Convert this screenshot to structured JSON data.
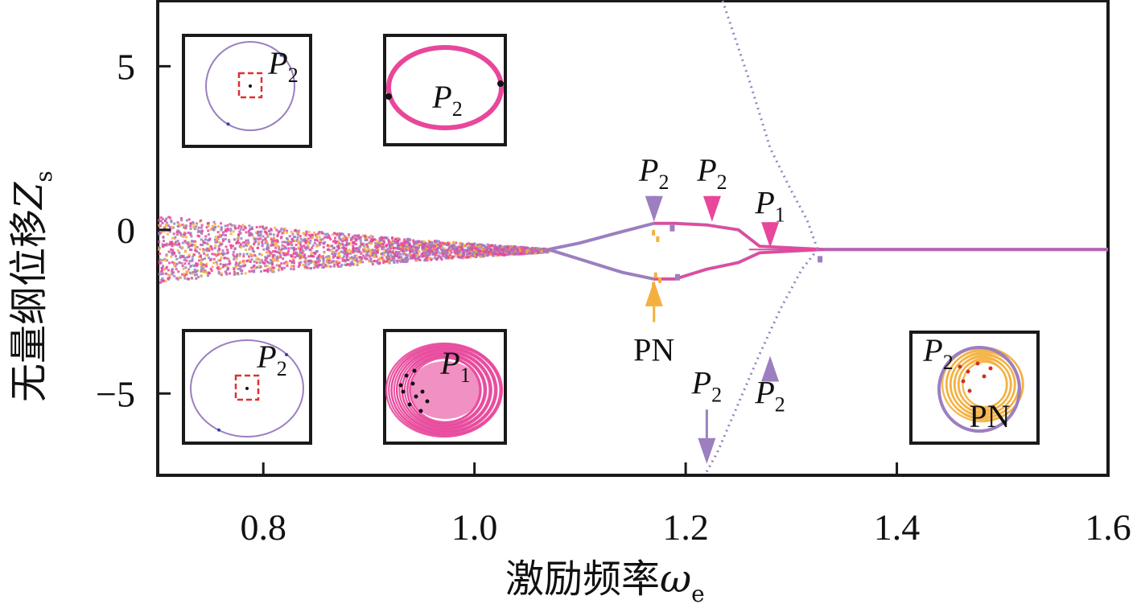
{
  "chart_data": {
    "type": "scatter",
    "xlabel": "激励频率",
    "xlabel_symbol": "ω",
    "xlabel_subscript": "e",
    "ylabel": "无量纲位移",
    "ylabel_symbol": "Z",
    "ylabel_subscript": "s",
    "xlim": [
      0.7,
      1.6
    ],
    "ylim": [
      -7.5,
      7
    ],
    "x_ticks": [
      0.8,
      1.0,
      1.2,
      1.4,
      1.6
    ],
    "x_tick_labels": [
      "0.8",
      "1.0",
      "1.2",
      "1.4",
      "1.6"
    ],
    "y_ticks": [
      5,
      0,
      -5
    ],
    "y_tick_labels": [
      "5",
      "0",
      "−5"
    ],
    "grid": false,
    "colors": {
      "purple": "#9b7fc0",
      "pink": "#e8479b",
      "orange": "#f4b03e",
      "frame": "#1a1a1a"
    },
    "branches": {
      "chaotic_band": {
        "x_range": [
          0.7,
          1.07
        ],
        "y_top_start": 0.5,
        "y_bottom_start": -1.6
      },
      "upper": [
        [
          1.07,
          -0.6
        ],
        [
          1.1,
          -0.4
        ],
        [
          1.14,
          -0.05
        ],
        [
          1.17,
          0.2
        ],
        [
          1.19,
          0.2
        ],
        [
          1.22,
          0.15
        ],
        [
          1.25,
          0.0
        ],
        [
          1.27,
          -0.5
        ],
        [
          1.33,
          -0.6
        ],
        [
          1.6,
          -0.6
        ]
      ],
      "lower": [
        [
          1.07,
          -0.6
        ],
        [
          1.1,
          -0.9
        ],
        [
          1.14,
          -1.3
        ],
        [
          1.17,
          -1.5
        ],
        [
          1.19,
          -1.5
        ],
        [
          1.22,
          -1.2
        ],
        [
          1.25,
          -1.0
        ],
        [
          1.27,
          -0.7
        ],
        [
          1.33,
          -0.6
        ],
        [
          1.6,
          -0.6
        ]
      ],
      "upper_dotted": [
        [
          1.235,
          7
        ],
        [
          1.26,
          4.6
        ],
        [
          1.28,
          2.5
        ],
        [
          1.3,
          1.2
        ],
        [
          1.315,
          0.3
        ],
        [
          1.325,
          -0.6
        ]
      ],
      "lower_dotted": [
        [
          1.325,
          -0.6
        ],
        [
          1.31,
          -1.2
        ],
        [
          1.29,
          -2.4
        ],
        [
          1.27,
          -3.8
        ],
        [
          1.25,
          -5.3
        ],
        [
          1.23,
          -6.8
        ],
        [
          1.218,
          -7.5
        ]
      ]
    },
    "annotations": [
      {
        "text": "P",
        "sub": "2",
        "x": 1.17,
        "y": 1.5,
        "arrow_to": [
          1.17,
          0.2
        ],
        "color": "#9b7fc0",
        "dir": "down"
      },
      {
        "text": "P",
        "sub": "2",
        "x": 1.225,
        "y": 1.5,
        "arrow_to": [
          1.225,
          0.2
        ],
        "color": "#e8479b",
        "dir": "down"
      },
      {
        "text": "P",
        "sub": "1",
        "x": 1.28,
        "y": 0.5,
        "arrow_to": [
          1.28,
          -0.6
        ],
        "color": "#e8479b",
        "dir": "down"
      },
      {
        "text": "PN",
        "sub": "",
        "x": 1.17,
        "y": -4.0,
        "arrow_to": [
          1.17,
          -1.5
        ],
        "color": "#f4b03e",
        "dir": "up"
      },
      {
        "text": "P",
        "sub": "2",
        "x": 1.22,
        "y": -5.0,
        "arrow_to": [
          1.22,
          -7.2
        ],
        "color": "#9b7fc0",
        "dir": "down"
      },
      {
        "text": "P",
        "sub": "2",
        "x": 1.28,
        "y": -5.3,
        "arrow_to": [
          1.28,
          -3.8
        ],
        "color": "#9b7fc0",
        "dir": "up"
      }
    ],
    "insets": [
      {
        "label": "P",
        "sub": "2",
        "content": "purple-circle-with-red-box"
      },
      {
        "label": "P",
        "sub": "2",
        "content": "pink-ellipse"
      },
      {
        "label": "P",
        "sub": "2",
        "content": "purple-circle-with-red-box"
      },
      {
        "label": "P",
        "sub": "1",
        "content": "pink-filled-torus"
      },
      {
        "label": "P",
        "sub": "2",
        "label2": "PN",
        "content": "purple-circle-orange-torus"
      }
    ]
  }
}
